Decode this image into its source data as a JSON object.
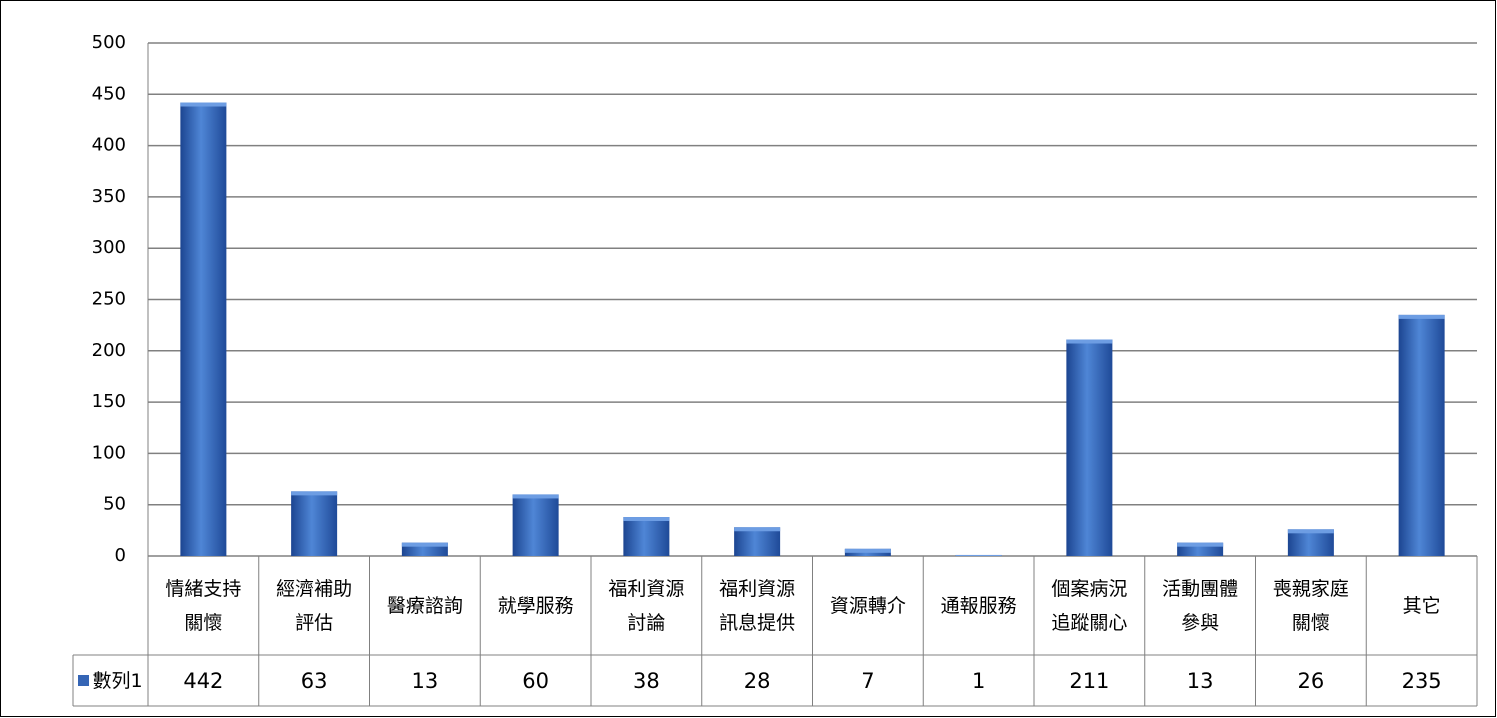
{
  "chart_data": {
    "type": "bar",
    "categories": [
      "情緒支持\n關懷",
      "經濟補助\n評估",
      "醫療諮詢",
      "就學服務",
      "福利資源\n討論",
      "福利資源\n訊息提供",
      "資源轉介",
      "通報服務",
      "個案病況\n追蹤關心",
      "活動團體\n參與",
      "喪親家庭\n關懷",
      "其它"
    ],
    "series": [
      {
        "name": "數列1",
        "color": "#3565b5",
        "values": [
          442,
          63,
          13,
          60,
          38,
          28,
          7,
          1,
          211,
          13,
          26,
          235
        ]
      }
    ],
    "ylim": [
      0,
      500
    ],
    "yticks": [
      0,
      50,
      100,
      150,
      200,
      250,
      300,
      350,
      400,
      450,
      500
    ],
    "grid": true
  }
}
